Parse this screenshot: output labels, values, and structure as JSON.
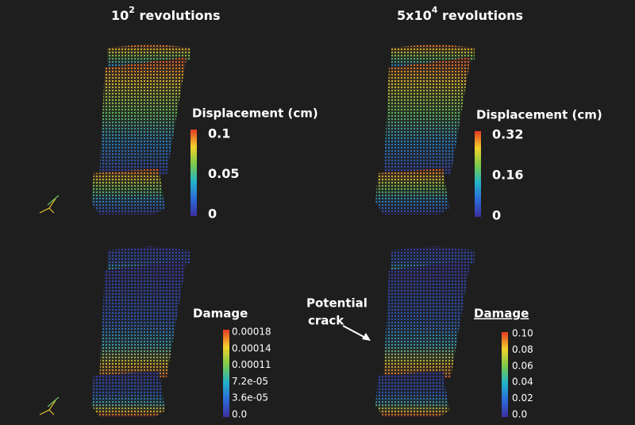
{
  "panels": {
    "left_title": {
      "base": "10",
      "exponent": "2",
      "rest": " revolutions"
    },
    "right_title": {
      "base": "5x10",
      "exponent": "4",
      "rest": " revolutions"
    },
    "top_left": {
      "label": "Displacement (cm)",
      "ticks": [
        "0.1",
        "0.05",
        "0"
      ]
    },
    "top_right": {
      "label": "Displacement (cm)",
      "ticks": [
        "0.32",
        "0.16",
        "0"
      ]
    },
    "bottom_left": {
      "label": "Damage",
      "ticks": [
        "0.00018",
        "0.00014",
        "0.00011",
        "7.2e-05",
        "3.6e-05",
        "0.0"
      ]
    },
    "bottom_right": {
      "label": "Damage",
      "ticks": [
        "0.10",
        "0.08",
        "0.06",
        "0.04",
        "0.02",
        "0.0"
      ],
      "annotation": [
        "Potential",
        "crack"
      ]
    }
  }
}
